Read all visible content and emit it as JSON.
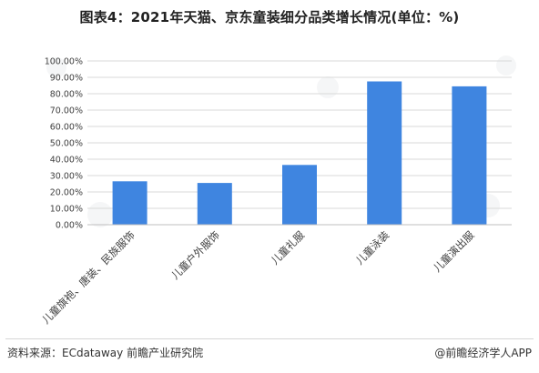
{
  "title": "图表4：2021年天猫、京东童装细分品类增长情况(单位：%)",
  "source": "资料来源：ECdataway 前瞻产业研究院",
  "credit": "@前瞻经济学人APP",
  "colors": {
    "bar": "#3F85E0",
    "grid": "#D9D9D9",
    "axis": "#BFBFBF"
  },
  "chart_data": {
    "type": "bar",
    "title": "图表4：2021年天猫、京东童装细分品类增长情况(单位：%)",
    "categories": [
      "儿童旗袍、唐装、民族服饰",
      "儿童户外服饰",
      "儿童礼服",
      "儿童泳装",
      "儿童演出服"
    ],
    "values": [
      26.5,
      25.5,
      36.5,
      87.5,
      84.5
    ],
    "unit": "%",
    "ylim": [
      0,
      100
    ],
    "ytick_step": 10,
    "yticks": [
      "0.00%",
      "10.00%",
      "20.00%",
      "30.00%",
      "40.00%",
      "50.00%",
      "60.00%",
      "70.00%",
      "80.00%",
      "90.00%",
      "100.00%"
    ],
    "grid": true,
    "legend": "none"
  }
}
